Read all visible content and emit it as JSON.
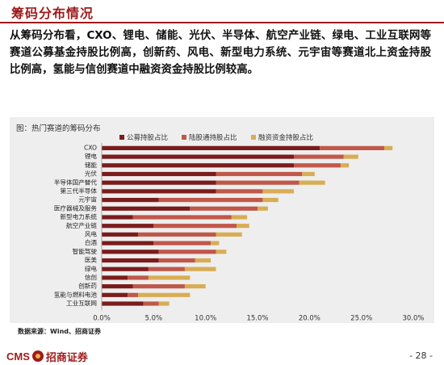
{
  "page": {
    "section_title": "筹码分布情况",
    "body_text": "从筹码分布看，CXO、锂电、储能、光伏、半导体、航空产业链、绿电、工业互联网等赛道公募基金持股比例高，创新药、风电、新型电力系统、元宇宙等赛道北上资金持股比例高，氢能与信创赛道中融资资金持股比例较高。",
    "source": "数据来源：Wind、招商证券",
    "logo_latin": "CMS",
    "logo_cn": "招商证券",
    "page_number": "- 28 -"
  },
  "colors": {
    "accent": "#9e1b1b",
    "series": [
      "#7b1c1c",
      "#c0584a",
      "#d9ad55"
    ]
  },
  "chart_data": {
    "type": "bar",
    "orientation": "horizontal",
    "stacked": true,
    "title": "图：热门赛道的筹码分布",
    "categories": [
      "CXO",
      "锂电",
      "储能",
      "光伏",
      "半导体国产替代",
      "第三代半导体",
      "元宇宙",
      "医疗器械及服务",
      "新型电力系统",
      "航空产业链",
      "风电",
      "白酒",
      "智能驾驶",
      "医美",
      "绿电",
      "信创",
      "创新药",
      "氢能与燃料电池",
      "工业互联网"
    ],
    "series": [
      {
        "name": "公募持股占比",
        "values": [
          21.0,
          18.5,
          18.5,
          11.0,
          11.0,
          11.0,
          5.5,
          8.5,
          3.0,
          5.0,
          3.5,
          5.0,
          5.5,
          5.5,
          4.5,
          2.5,
          3.0,
          2.5,
          4.0
        ]
      },
      {
        "name": "陆股通持股占比",
        "values": [
          6.2,
          4.8,
          4.5,
          8.3,
          8.0,
          4.5,
          10.0,
          6.5,
          9.5,
          8.0,
          7.5,
          5.5,
          5.5,
          3.5,
          3.5,
          2.0,
          5.0,
          1.0,
          1.5
        ]
      },
      {
        "name": "融资资金持股占比",
        "values": [
          0.8,
          1.4,
          0.8,
          1.2,
          2.5,
          3.0,
          1.5,
          1.0,
          1.5,
          1.2,
          2.5,
          0.8,
          1.0,
          1.5,
          3.0,
          4.0,
          2.0,
          5.0,
          1.0
        ]
      }
    ],
    "xlim": [
      0,
      30
    ],
    "xticks": [
      "0.0%",
      "5.0%",
      "10.0%",
      "15.0%",
      "20.0%",
      "25.0%",
      "30.0%"
    ],
    "legend_position": "top",
    "grid": false
  }
}
